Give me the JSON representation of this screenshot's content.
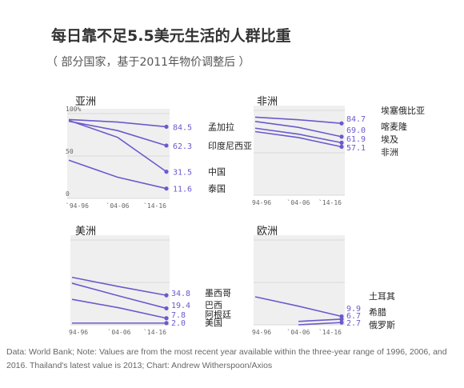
{
  "title": "每日靠不足5.5美元生活的人群比重",
  "subtitle": "（ 部分国家，基于2011年物价调整后 ）",
  "source": "Data: World Bank; Note: Values are from the most recent year available within the three-year range of 1996, 2006, and 2016. Thailand's latest value is 2013; Chart: Andrew Witherspoon/Axios",
  "colors": {
    "line": "#6a5acd",
    "bg": "#efefef",
    "text": "#222"
  },
  "chart_data": [
    {
      "type": "line",
      "title": "亚洲",
      "categories": [
        "`94-96",
        "`04-06",
        "`14-16"
      ],
      "ylim": [
        0,
        100
      ],
      "yticks": [
        "100%",
        "50",
        "0"
      ],
      "series": [
        {
          "name": "孟加拉",
          "values": [
            93,
            90,
            84.5
          ],
          "label": "84.5"
        },
        {
          "name": "印度尼西亚",
          "values": [
            91,
            80,
            62.3
          ],
          "label": "62.3"
        },
        {
          "name": "中国",
          "values": [
            92,
            72,
            31.5
          ],
          "label": "31.5"
        },
        {
          "name": "泰国",
          "values": [
            45,
            25,
            11.6
          ],
          "label": "11.6"
        }
      ]
    },
    {
      "type": "line",
      "title": "非洲",
      "categories": [
        "94-96",
        "`04-06",
        "`14-16"
      ],
      "ylim": [
        0,
        100
      ],
      "series": [
        {
          "name": "埃塞俄比亚",
          "values": [
            92,
            89,
            84.7
          ],
          "label": "84.7"
        },
        {
          "name": "喀麦隆",
          "values": [
            87,
            80,
            69.0
          ],
          "label": "69.0"
        },
        {
          "name": "埃及",
          "values": [
            79,
            72,
            61.9
          ],
          "label": "61.9"
        },
        {
          "name": "非洲",
          "values": [
            75,
            68,
            57.1
          ],
          "label": "57.1"
        }
      ]
    },
    {
      "type": "line",
      "title": "美洲",
      "categories": [
        "94-96",
        "`04-06",
        "`14-16"
      ],
      "ylim": [
        0,
        100
      ],
      "series": [
        {
          "name": "墨西哥",
          "values": [
            56,
            45,
            34.8
          ],
          "label": "34.8"
        },
        {
          "name": "巴西",
          "values": [
            49,
            34,
            19.4
          ],
          "label": "19.4"
        },
        {
          "name": "阿根廷",
          "values": [
            30,
            20,
            7.8
          ],
          "label": "7.8"
        },
        {
          "name": "美国",
          "values": [
            2,
            2,
            2.0
          ],
          "label": "2.0"
        }
      ]
    },
    {
      "type": "line",
      "title": "欧洲",
      "categories": [
        "94-96",
        "`04-06",
        "`14-16"
      ],
      "ylim": [
        0,
        100
      ],
      "series": [
        {
          "name": "土耳其",
          "values": [
            33,
            22,
            9.9
          ],
          "label": "9.9"
        },
        {
          "name": "希腊",
          "values": [
            null,
            4,
            6.7
          ],
          "label": "6.7"
        },
        {
          "name": "俄罗斯",
          "values": [
            null,
            0,
            2.7
          ],
          "label": "2.7"
        }
      ]
    }
  ]
}
